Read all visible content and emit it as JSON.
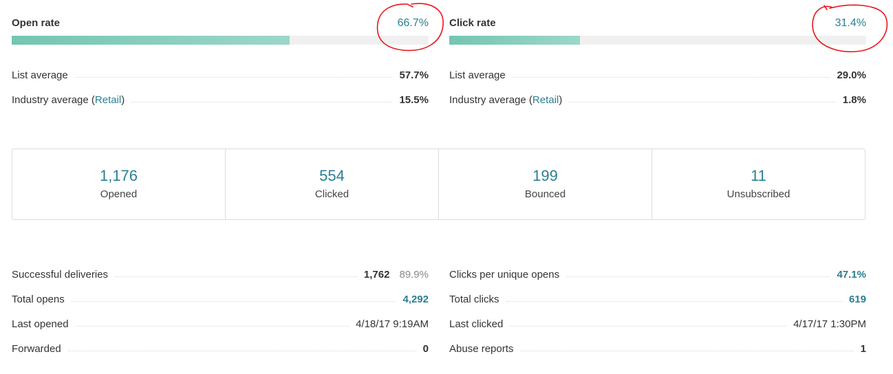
{
  "open_rate": {
    "title": "Open rate",
    "value": "66.7%",
    "fill_fraction": 0.667,
    "list_average_label": "List average",
    "list_average_value": "57.7%",
    "industry_label_prefix": "Industry average (",
    "industry_link": "Retail",
    "industry_label_suffix": ")",
    "industry_value": "15.5%"
  },
  "click_rate": {
    "title": "Click rate",
    "value": "31.4%",
    "fill_fraction": 0.314,
    "list_average_label": "List average",
    "list_average_value": "29.0%",
    "industry_label_prefix": "Industry average (",
    "industry_link": "Retail",
    "industry_label_suffix": ")",
    "industry_value": "1.8%"
  },
  "summary": [
    {
      "number": "1,176",
      "label": "Opened"
    },
    {
      "number": "554",
      "label": "Clicked"
    },
    {
      "number": "199",
      "label": "Bounced"
    },
    {
      "number": "11",
      "label": "Unsubscribed"
    }
  ],
  "details_left": {
    "successful_deliveries_label": "Successful deliveries",
    "successful_deliveries_value": "1,762",
    "successful_deliveries_percent": "89.9%",
    "total_opens_label": "Total opens",
    "total_opens_value": "4,292",
    "last_opened_label": "Last opened",
    "last_opened_value": "4/18/17 9:19AM",
    "forwarded_label": "Forwarded",
    "forwarded_value": "0"
  },
  "details_right": {
    "clicks_per_unique_label": "Clicks per unique opens",
    "clicks_per_unique_value": "47.1%",
    "total_clicks_label": "Total clicks",
    "total_clicks_value": "619",
    "last_clicked_label": "Last clicked",
    "last_clicked_value": "4/17/17 1:30PM",
    "abuse_reports_label": "Abuse reports",
    "abuse_reports_value": "1"
  },
  "colors": {
    "accent": "#2a7f93",
    "bar_fill_start": "#74c5b2",
    "bar_fill_end": "#9cd7c9",
    "bar_track": "#f0f0f0",
    "annotation": "#e8141c"
  }
}
